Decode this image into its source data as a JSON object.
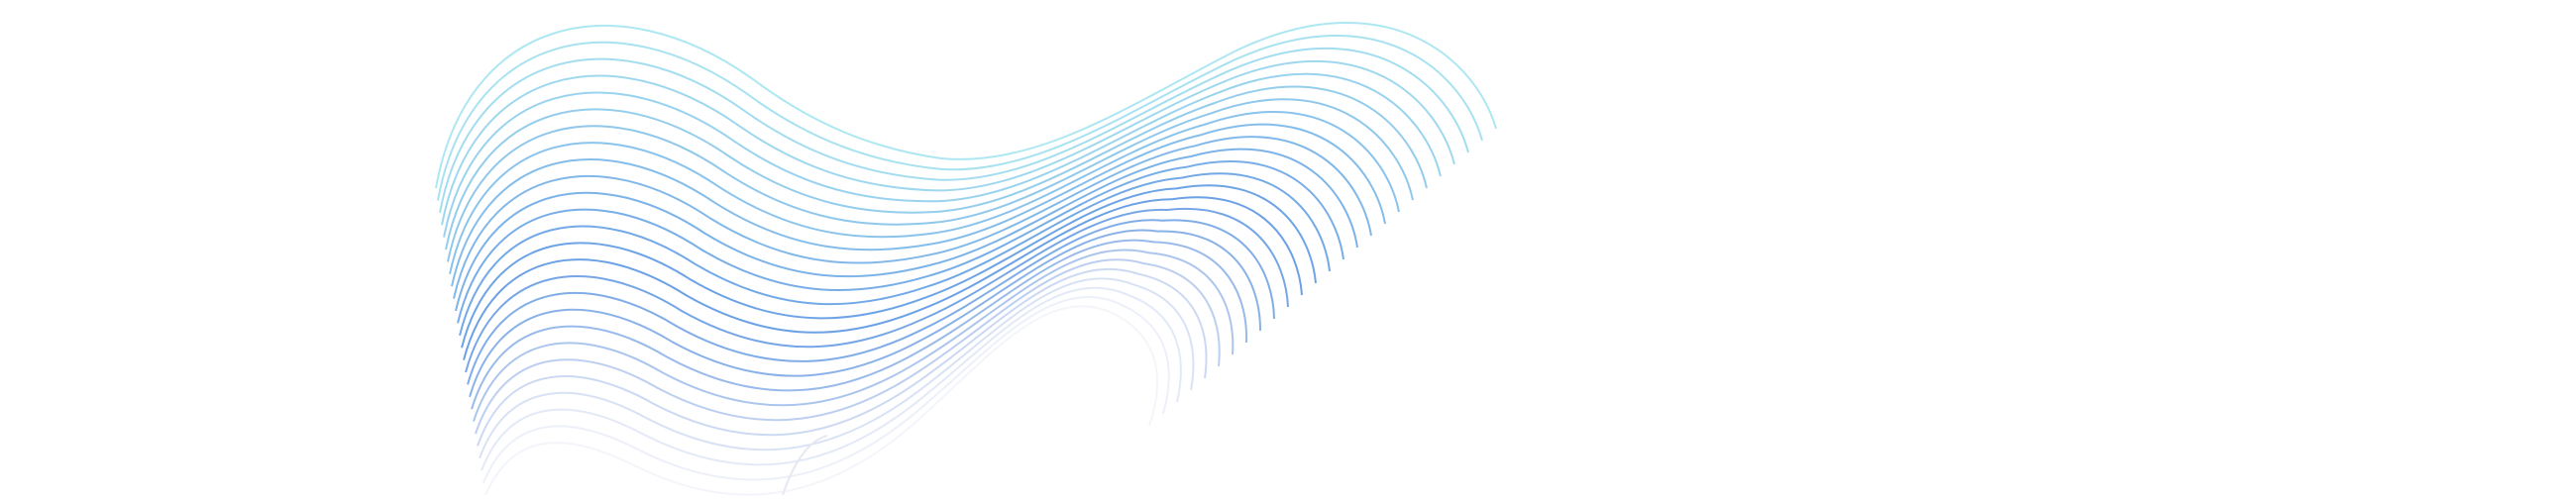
{
  "artwork": {
    "kind": "decorative-wave-lines",
    "colors": {
      "top": "#9fe3ee",
      "middle": "#4f8fe0",
      "bottom": "#d4d6ee",
      "background": "#ffffff"
    }
  }
}
